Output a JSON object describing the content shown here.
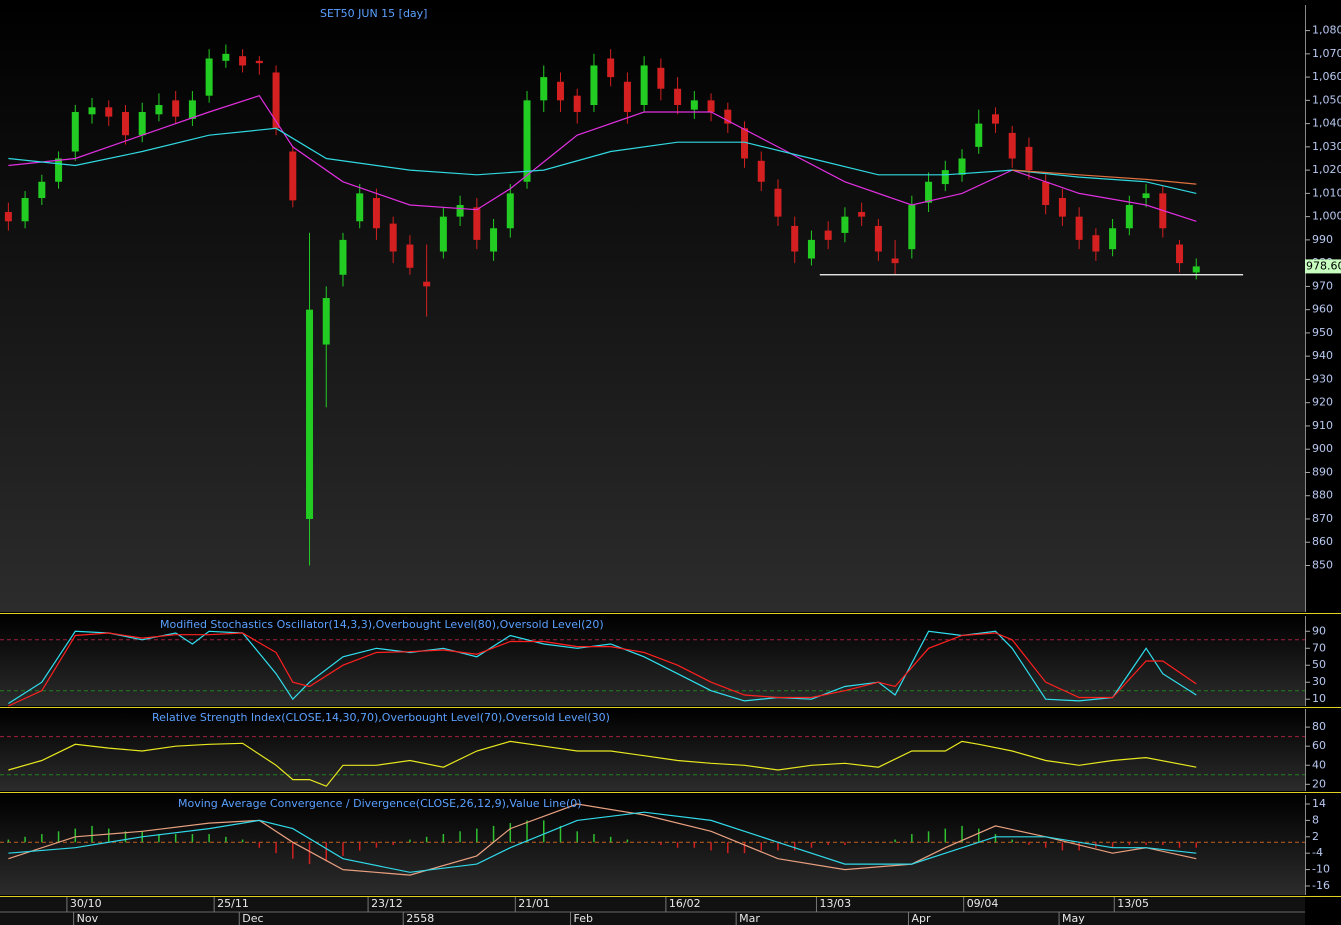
{
  "chart_data": [
    {
      "type": "candlestick",
      "title": "SET50 JUN 15  [day]",
      "up_color": "#22cc22",
      "down_color": "#d42020",
      "xlim": [
        -0.5,
        77.5
      ],
      "ylim": [
        830,
        1091
      ],
      "yticks": [
        850,
        860,
        870,
        880,
        890,
        900,
        910,
        920,
        930,
        940,
        950,
        960,
        970,
        980,
        990,
        {
          "value": 1000,
          "label": "1,000"
        },
        {
          "value": 1010,
          "label": "1,010"
        },
        {
          "value": 1020,
          "label": "1,020"
        },
        {
          "value": 1030,
          "label": "1,030"
        },
        {
          "value": 1040,
          "label": "1,040"
        },
        {
          "value": 1050,
          "label": "1,050"
        },
        {
          "value": 1060,
          "label": "1,060"
        },
        {
          "value": 1070,
          "label": "1,070"
        },
        {
          "value": 1080,
          "label": "1,080"
        }
      ],
      "xticks": [
        {
          "value": 3.5,
          "label": "30/10"
        },
        {
          "value": 12.3,
          "label": "25/11"
        },
        {
          "value": 21.5,
          "label": "23/12"
        },
        {
          "value": 30.3,
          "label": "21/01"
        },
        {
          "value": 39.3,
          "label": "16/02"
        },
        {
          "value": 48.3,
          "label": "13/03"
        },
        {
          "value": 57.1,
          "label": "09/04"
        },
        {
          "value": 66.1,
          "label": "13/05"
        }
      ],
      "month_ticks": [
        {
          "value": 3.9,
          "label": "Nov"
        },
        {
          "value": 13.8,
          "label": "Dec"
        },
        {
          "value": 23.6,
          "label": "2558"
        },
        {
          "value": 33.6,
          "label": "Feb"
        },
        {
          "value": 43.5,
          "label": "Mar"
        },
        {
          "value": 53.8,
          "label": "Apr"
        },
        {
          "value": 62.8,
          "label": "May"
        }
      ],
      "ohlc": [
        [
          1002,
          1006,
          994,
          998
        ],
        [
          998,
          1011,
          995,
          1008
        ],
        [
          1008,
          1018,
          1005,
          1015
        ],
        [
          1015,
          1028,
          1012,
          1025
        ],
        [
          1028,
          1048,
          1024,
          1045
        ],
        [
          1044,
          1051,
          1040,
          1047
        ],
        [
          1047,
          1050,
          1039,
          1043
        ],
        [
          1045,
          1048,
          1031,
          1035
        ],
        [
          1035,
          1049,
          1032,
          1045
        ],
        [
          1044,
          1053,
          1041,
          1048
        ],
        [
          1050,
          1054,
          1040,
          1043
        ],
        [
          1042,
          1054,
          1039,
          1050
        ],
        [
          1052,
          1072,
          1049,
          1068
        ],
        [
          1067,
          1074,
          1064,
          1070
        ],
        [
          1069,
          1072,
          1062,
          1065
        ],
        [
          1067,
          1069,
          1061,
          1066
        ],
        [
          1062,
          1065,
          1035,
          1038
        ],
        [
          1028,
          1030,
          1004,
          1007
        ],
        [
          870,
          993,
          850,
          960
        ],
        [
          945,
          970,
          918,
          965
        ],
        [
          975,
          993,
          970,
          990
        ],
        [
          998,
          1014,
          995,
          1010
        ],
        [
          1008,
          1012,
          990,
          995
        ],
        [
          997,
          1000,
          980,
          985
        ],
        [
          988,
          992,
          975,
          978
        ],
        [
          972,
          988,
          957,
          970
        ],
        [
          985,
          1004,
          982,
          1000
        ],
        [
          1000,
          1009,
          996,
          1005
        ],
        [
          1004,
          1008,
          986,
          990
        ],
        [
          985,
          999,
          981,
          995
        ],
        [
          995,
          1014,
          991,
          1010
        ],
        [
          1015,
          1054,
          1012,
          1050
        ],
        [
          1050,
          1065,
          1045,
          1060
        ],
        [
          1058,
          1062,
          1045,
          1050
        ],
        [
          1052,
          1055,
          1040,
          1045
        ],
        [
          1048,
          1070,
          1045,
          1065
        ],
        [
          1068,
          1072,
          1056,
          1060
        ],
        [
          1058,
          1062,
          1040,
          1045
        ],
        [
          1048,
          1069,
          1045,
          1065
        ],
        [
          1064,
          1068,
          1050,
          1055
        ],
        [
          1055,
          1060,
          1044,
          1048
        ],
        [
          1046,
          1054,
          1042,
          1050
        ],
        [
          1050,
          1053,
          1041,
          1045
        ],
        [
          1046,
          1049,
          1036,
          1040
        ],
        [
          1038,
          1041,
          1021,
          1025
        ],
        [
          1024,
          1028,
          1011,
          1015
        ],
        [
          1012,
          1016,
          996,
          1000
        ],
        [
          996,
          1000,
          980,
          985
        ],
        [
          982,
          994,
          979,
          990
        ],
        [
          994,
          998,
          986,
          990
        ],
        [
          993,
          1004,
          989,
          1000
        ],
        [
          1002,
          1006,
          996,
          1000
        ],
        [
          996,
          999,
          981,
          985
        ],
        [
          982,
          990,
          975,
          980
        ],
        [
          986,
          1009,
          982,
          1005
        ],
        [
          1006,
          1019,
          1002,
          1015
        ],
        [
          1014,
          1024,
          1011,
          1020
        ],
        [
          1018,
          1029,
          1015,
          1025
        ],
        [
          1030,
          1046,
          1027,
          1040
        ],
        [
          1044,
          1047,
          1036,
          1040
        ],
        [
          1036,
          1039,
          1021,
          1025
        ],
        [
          1030,
          1034,
          1016,
          1020
        ],
        [
          1015,
          1018,
          1001,
          1005
        ],
        [
          1008,
          1012,
          996,
          1000
        ],
        [
          1000,
          1004,
          986,
          990
        ],
        [
          992,
          995,
          981,
          985
        ],
        [
          986,
          999,
          983,
          995
        ],
        [
          995,
          1009,
          992,
          1005
        ],
        [
          1008,
          1014,
          1004,
          1010
        ],
        [
          1010,
          1013,
          991,
          995
        ],
        [
          988,
          990,
          976,
          980
        ],
        [
          976,
          982,
          973,
          978.6
        ]
      ],
      "series": [
        {
          "color": "#e030e0",
          "x": [
            0,
            4,
            8,
            12,
            15,
            17,
            20,
            24,
            28,
            30,
            34,
            38,
            42,
            46,
            50,
            54,
            57,
            60,
            64,
            68,
            71
          ],
          "values": [
            1022,
            1025,
            1035,
            1045,
            1052,
            1030,
            1015,
            1005,
            1003,
            1012,
            1035,
            1045,
            1045,
            1030,
            1015,
            1005,
            1010,
            1020,
            1010,
            1005,
            998
          ]
        },
        {
          "color": "#30d8e0",
          "x": [
            0,
            4,
            8,
            12,
            16,
            19,
            24,
            28,
            32,
            36,
            40,
            44,
            48,
            52,
            56,
            60,
            64,
            68,
            71
          ],
          "values": [
            1025,
            1022,
            1028,
            1035,
            1038,
            1025,
            1020,
            1018,
            1020,
            1028,
            1032,
            1032,
            1025,
            1018,
            1018,
            1020,
            1017,
            1015,
            1010
          ]
        },
        {
          "color": "#e07040",
          "x": [
            60,
            64,
            68,
            71
          ],
          "values": [
            1020,
            1018,
            1016,
            1014
          ]
        }
      ],
      "support_line": {
        "value": 975,
        "x": [
          48.5,
          73.8
        ],
        "color": "#ffffff"
      },
      "last_price": {
        "value": 978.6,
        "label": "978.60",
        "color": "#c8ffc0"
      }
    },
    {
      "type": "line",
      "title": "Modified Stochastics Oscillator(14,3,3),Overbought Level(80),Oversold Level(20)",
      "ylim": [
        2,
        108
      ],
      "yticks": [
        10,
        30,
        50,
        70,
        90
      ],
      "levels": [
        {
          "value": 80,
          "color": "#a02040"
        },
        {
          "value": 20,
          "color": "#208020"
        }
      ],
      "series": [
        {
          "color": "#30e0f0",
          "x": [
            0,
            2,
            4,
            6,
            8,
            10,
            11,
            12,
            14,
            16,
            17,
            18,
            20,
            22,
            24,
            26,
            28,
            30,
            32,
            34,
            36,
            38,
            40,
            42,
            44,
            46,
            48,
            50,
            52,
            53,
            55,
            57,
            59,
            60,
            62,
            64,
            66,
            68,
            69,
            71
          ],
          "values": [
            5,
            30,
            90,
            88,
            80,
            88,
            75,
            90,
            88,
            40,
            10,
            30,
            60,
            70,
            65,
            70,
            60,
            85,
            75,
            70,
            75,
            60,
            40,
            20,
            8,
            12,
            10,
            25,
            30,
            15,
            90,
            85,
            90,
            70,
            10,
            8,
            12,
            70,
            40,
            15
          ]
        },
        {
          "color": "#ff2020",
          "x": [
            0,
            2,
            4,
            6,
            8,
            10,
            12,
            14,
            16,
            17,
            18,
            20,
            22,
            24,
            26,
            28,
            30,
            32,
            34,
            36,
            38,
            40,
            42,
            44,
            46,
            48,
            50,
            52,
            53,
            55,
            57,
            59,
            60,
            62,
            64,
            66,
            68,
            69,
            71
          ],
          "values": [
            2,
            20,
            85,
            88,
            82,
            86,
            86,
            88,
            65,
            30,
            25,
            50,
            65,
            66,
            68,
            63,
            78,
            78,
            72,
            72,
            65,
            50,
            30,
            15,
            12,
            12,
            20,
            30,
            25,
            70,
            85,
            88,
            80,
            30,
            12,
            12,
            55,
            55,
            28
          ]
        }
      ]
    },
    {
      "type": "line",
      "title": "Relative Strength Index(CLOSE,14,30,70),Overbought Level(70),Oversold Level(30)",
      "ylim": [
        13,
        99
      ],
      "yticks": [
        20,
        40,
        60,
        80
      ],
      "levels": [
        {
          "value": 70,
          "color": "#a02040"
        },
        {
          "value": 30,
          "color": "#208020"
        }
      ],
      "series": [
        {
          "color": "#e8e820",
          "x": [
            0,
            2,
            4,
            6,
            8,
            10,
            12,
            14,
            16,
            17,
            18,
            19,
            20,
            22,
            24,
            26,
            28,
            30,
            32,
            34,
            36,
            38,
            40,
            42,
            44,
            46,
            48,
            50,
            52,
            54,
            56,
            57,
            58,
            60,
            62,
            64,
            66,
            68,
            71
          ],
          "values": [
            35,
            45,
            62,
            58,
            55,
            60,
            62,
            63,
            40,
            25,
            25,
            18,
            40,
            40,
            45,
            38,
            55,
            65,
            60,
            55,
            55,
            50,
            45,
            42,
            40,
            35,
            40,
            42,
            38,
            55,
            55,
            65,
            62,
            55,
            45,
            40,
            45,
            48,
            38
          ]
        }
      ]
    },
    {
      "type": "line",
      "title": "Moving Average Convergence / Divergence(CLOSE,26,12,9),Value Line(0)",
      "ylim": [
        -19.3,
        17.3
      ],
      "yticks": [
        14,
        8,
        2,
        -4,
        -10,
        -16
      ],
      "levels": [
        {
          "value": 0,
          "color": "#c06020"
        }
      ],
      "histogram": {
        "up_color": "#30c030",
        "down_color": "#d02020",
        "values": [
          1,
          2,
          3,
          4,
          5,
          6,
          5,
          4,
          4,
          3,
          3,
          3,
          3,
          2,
          1,
          -2,
          -4,
          -6,
          -8,
          -7,
          -5,
          -3,
          -2,
          -1,
          1,
          2,
          3,
          4,
          5,
          6,
          7,
          8,
          8,
          6,
          4,
          3,
          2,
          1,
          0,
          -1,
          -2,
          -2,
          -3,
          -4,
          -4,
          -3,
          -3,
          -3,
          -2,
          -1,
          -1,
          0,
          0,
          1,
          3,
          4,
          5,
          6,
          5,
          3,
          1,
          -1,
          -2,
          -3,
          -3,
          -2,
          -2,
          -1,
          -1,
          -1,
          -2,
          -2
        ]
      },
      "series": [
        {
          "color": "#e8a080",
          "x": [
            0,
            4,
            8,
            12,
            15,
            17,
            20,
            24,
            28,
            30,
            34,
            38,
            42,
            46,
            50,
            54,
            56,
            59,
            62,
            66,
            68,
            71
          ],
          "values": [
            -6,
            2,
            4,
            7,
            8,
            0,
            -10,
            -12,
            -5,
            5,
            14,
            10,
            4,
            -6,
            -10,
            -8,
            -2,
            6,
            2,
            -4,
            -2,
            -6
          ]
        },
        {
          "color": "#30d8e8",
          "x": [
            0,
            4,
            8,
            12,
            15,
            17,
            20,
            24,
            28,
            30,
            34,
            38,
            42,
            46,
            50,
            54,
            56,
            59,
            62,
            66,
            68,
            71
          ],
          "values": [
            -4,
            -2,
            2,
            5,
            8,
            5,
            -6,
            -11,
            -8,
            -2,
            8,
            11,
            8,
            0,
            -8,
            -8,
            -4,
            2,
            2,
            -2,
            -2,
            -4
          ]
        }
      ]
    }
  ]
}
